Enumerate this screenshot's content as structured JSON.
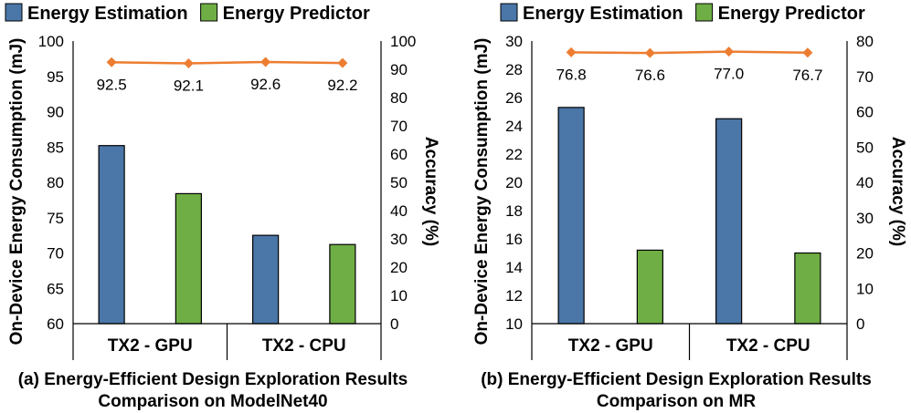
{
  "colors": {
    "estimation": "#4a76a8",
    "predictor": "#6fae45",
    "accuracy": "#ed7d31",
    "outline": "#000000"
  },
  "chart_data": [
    {
      "type": "bar",
      "title": "(a) Energy-Efficient Design Exploration Results",
      "subtitle": "Comparison on ModelNet40",
      "categories": [
        "TX2 - GPU",
        "TX2 - CPU"
      ],
      "ylabel": "On-Device Energy Consumption (mJ)",
      "y2label": "Accuracy (%)",
      "ylim": [
        60,
        100
      ],
      "yticks": [
        60,
        65,
        70,
        75,
        80,
        85,
        90,
        95,
        100
      ],
      "y2lim": [
        0,
        100
      ],
      "y2ticks": [
        0,
        10,
        20,
        30,
        40,
        50,
        60,
        70,
        80,
        90,
        100
      ],
      "series": [
        {
          "name": "Energy Estimation",
          "values": [
            85.2,
            72.5
          ]
        },
        {
          "name": "Energy Predictor",
          "values": [
            78.4,
            71.2
          ]
        }
      ],
      "accuracy": {
        "values": [
          92.5,
          92.1,
          92.6,
          92.2
        ],
        "labels": [
          "92.5",
          "92.1",
          "92.6",
          "92.2"
        ]
      },
      "legend": [
        "Energy Estimation",
        "Energy Predictor"
      ]
    },
    {
      "type": "bar",
      "title": "(b) Energy-Efficient Design Exploration Results",
      "subtitle": "Comparison on MR",
      "categories": [
        "TX2 - GPU",
        "TX2 - CPU"
      ],
      "ylabel": "On-Device Energy Consumption (mJ)",
      "y2label": "Accuracy (%)",
      "ylim": [
        10,
        30
      ],
      "yticks": [
        10,
        12,
        14,
        16,
        18,
        20,
        22,
        24,
        26,
        28,
        30
      ],
      "y2lim": [
        0,
        80
      ],
      "y2ticks": [
        0,
        10,
        20,
        30,
        40,
        50,
        60,
        70,
        80
      ],
      "series": [
        {
          "name": "Energy Estimation",
          "values": [
            25.3,
            24.5
          ]
        },
        {
          "name": "Energy Predictor",
          "values": [
            15.2,
            15.0
          ]
        }
      ],
      "accuracy": {
        "values": [
          76.8,
          76.6,
          77.0,
          76.7
        ],
        "labels": [
          "76.8",
          "76.6",
          "77.0",
          "76.7"
        ]
      },
      "legend": [
        "Energy Estimation",
        "Energy Predictor"
      ]
    }
  ]
}
